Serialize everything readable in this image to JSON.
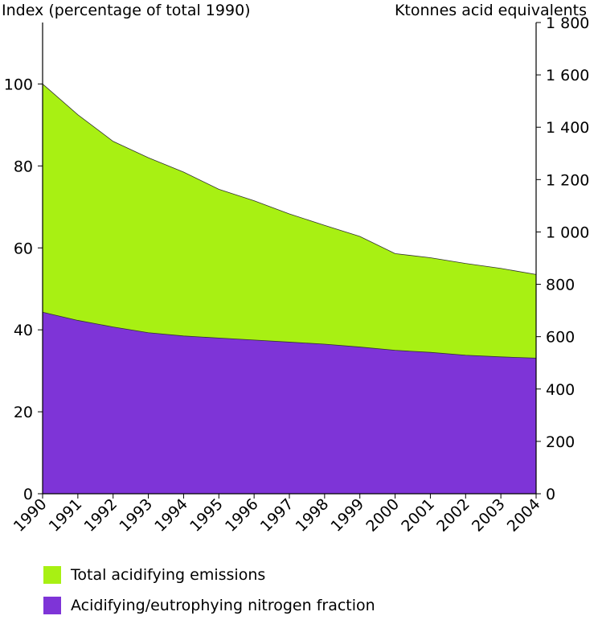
{
  "chart_data": {
    "type": "area",
    "ylabel_left": "Index (percentage of total 1990)",
    "ylabel_right": "Ktonnes acid equivalents",
    "x": [
      "1990",
      "1991",
      "1992",
      "1993",
      "1994",
      "1995",
      "1996",
      "1997",
      "1998",
      "1999",
      "2000",
      "2001",
      "2002",
      "2003",
      "2004"
    ],
    "left_ticks": [
      0,
      20,
      40,
      60,
      80,
      100
    ],
    "left_tick_labels": [
      "0",
      "20",
      "40",
      "60",
      "80",
      "100"
    ],
    "ylim_left": [
      0,
      115
    ],
    "right_ticks": [
      0,
      200,
      400,
      600,
      800,
      1000,
      1200,
      1400,
      1600,
      1800
    ],
    "right_tick_labels": [
      "0",
      "200",
      "400",
      "600",
      "800",
      "1 000",
      "1 200",
      "1 400",
      "1 600",
      "1 800"
    ],
    "ylim_right": [
      0,
      1800
    ],
    "series": [
      {
        "name": "Total acidifying emissions",
        "color": "#a8f013",
        "values": [
          100,
          92.5,
          86,
          82,
          78.5,
          74.3,
          71.5,
          68.3,
          65.5,
          62.8,
          58.6,
          57.6,
          56.2,
          55,
          53.5
        ]
      },
      {
        "name": "Acidifying/eutrophying nitrogen fraction",
        "color": "#7e34d7",
        "values": [
          44.3,
          42.3,
          40.7,
          39.3,
          38.5,
          38,
          37.5,
          37,
          36.5,
          35.8,
          35,
          34.5,
          33.8,
          33.4,
          33.1
        ]
      }
    ],
    "legend_position": "bottom-left"
  }
}
